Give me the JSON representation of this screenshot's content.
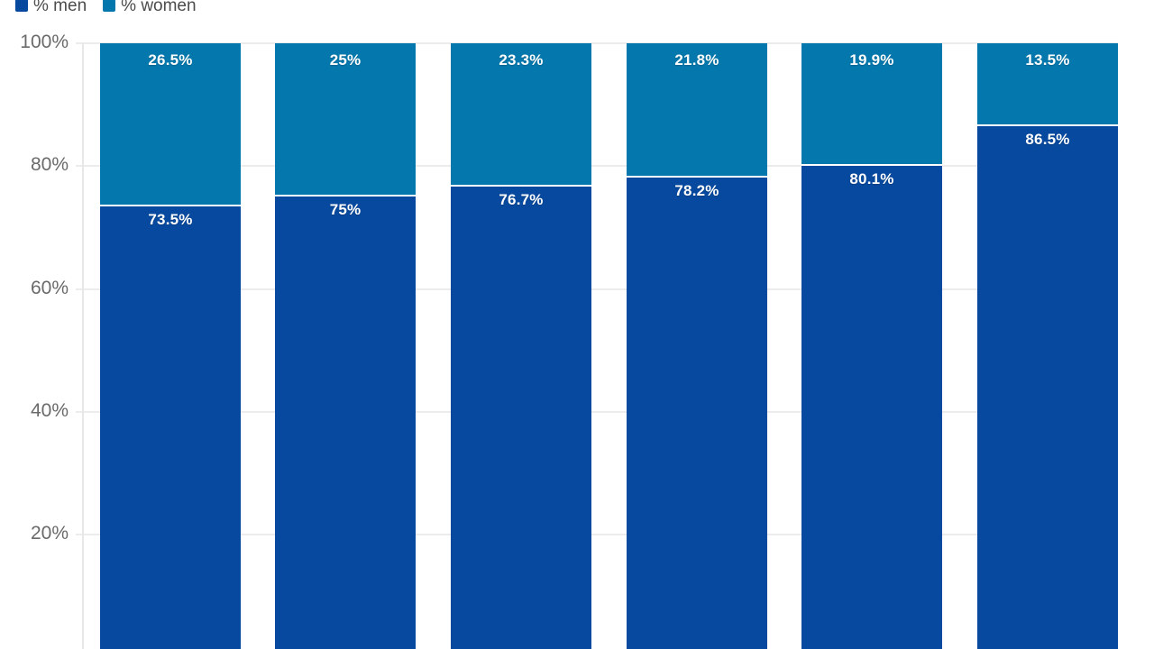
{
  "legend": {
    "items": [
      {
        "id": "men",
        "label": "% men",
        "color": "#07499e"
      },
      {
        "id": "women",
        "label": "% women",
        "color": "#0478ad"
      }
    ]
  },
  "y_axis": {
    "ticks": [
      {
        "value": 100,
        "label": "100%"
      },
      {
        "value": 80,
        "label": "80%"
      },
      {
        "value": 60,
        "label": "60%"
      },
      {
        "value": 40,
        "label": "40%"
      },
      {
        "value": 20,
        "label": "20%"
      }
    ]
  },
  "chart_data": {
    "type": "bar",
    "variant": "stacked-column",
    "title": "",
    "xlabel": "",
    "ylabel": "",
    "ylim": [
      0,
      100
    ],
    "grid": true,
    "legend_position": "top-left",
    "categories": [
      "",
      "",
      "",
      "",
      "",
      ""
    ],
    "series": [
      {
        "name": "% men",
        "color": "#07499e",
        "values": [
          73.5,
          75,
          76.7,
          78.2,
          80.1,
          86.5
        ],
        "labels": [
          "73.5%",
          "75%",
          "76.7%",
          "78.2%",
          "80.1%",
          "86.5%"
        ]
      },
      {
        "name": "% women",
        "color": "#0478ad",
        "values": [
          26.5,
          25,
          23.3,
          21.8,
          19.9,
          13.5
        ],
        "labels": [
          "26.5%",
          "25%",
          "23.3%",
          "21.8%",
          "19.9%",
          "13.5%"
        ]
      }
    ],
    "y_tick_labels": [
      "100%",
      "80%",
      "60%",
      "40%",
      "20%"
    ]
  },
  "colors": {
    "men": "#07499e",
    "women": "#0478ad",
    "gridline": "#ececec",
    "axis_line": "#e7e7e7",
    "y_tick_text": "#6a6a6a",
    "legend_text": "#4c4c4c",
    "segment_divider": "#ffffff",
    "background": "#ffffff"
  }
}
